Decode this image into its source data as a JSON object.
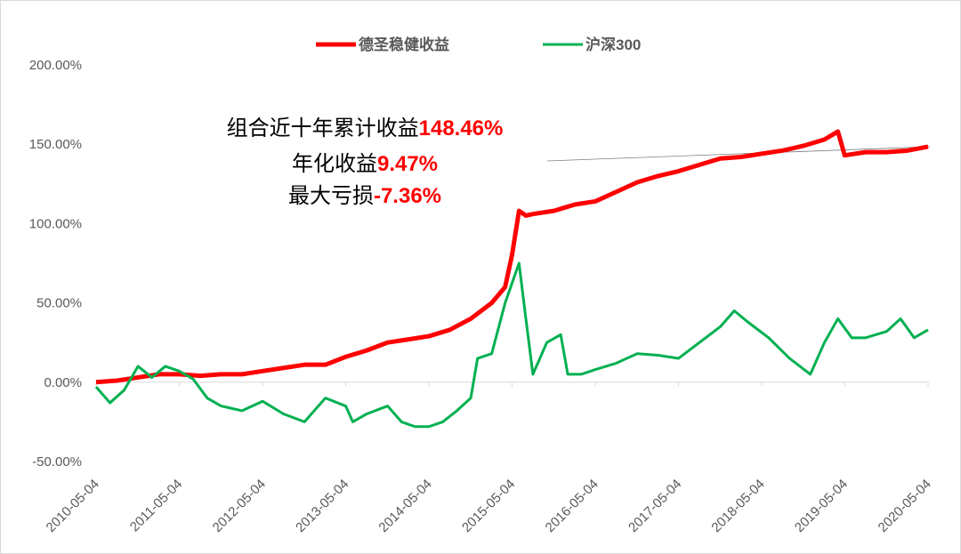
{
  "chart_data": {
    "type": "line",
    "xlim": [
      "2010-05-04",
      "2020-05-04"
    ],
    "xticks": [
      "2010-05-04",
      "2011-05-04",
      "2012-05-04",
      "2013-05-04",
      "2014-05-04",
      "2015-05-04",
      "2016-05-04",
      "2017-05-04",
      "2018-05-04",
      "2019-05-04",
      "2020-05-04"
    ],
    "ylim": [
      -50,
      200
    ],
    "yticks": [
      {
        "value": -50,
        "label": "-50.00%"
      },
      {
        "value": 0,
        "label": "0.00%"
      },
      {
        "value": 50,
        "label": "50.00%"
      },
      {
        "value": 100,
        "label": "100.00%"
      },
      {
        "value": 150,
        "label": "150.00%"
      },
      {
        "value": 200,
        "label": "200.00%"
      }
    ],
    "grid": false,
    "legend": "top",
    "annotations": [
      {
        "label": "组合近十年累计收益",
        "value": "148.46%"
      },
      {
        "label": "年化收益",
        "value": "9.47%"
      },
      {
        "label": "最大亏损",
        "value": "-7.36%"
      }
    ],
    "series": [
      {
        "name": "德圣稳健收益",
        "color": "#ff0000",
        "x": [
          "2010-05-04",
          "2010-08-04",
          "2010-11-04",
          "2011-02-04",
          "2011-05-04",
          "2011-08-04",
          "2011-11-04",
          "2012-02-04",
          "2012-05-04",
          "2012-08-04",
          "2012-11-04",
          "2013-02-04",
          "2013-05-04",
          "2013-08-04",
          "2013-11-04",
          "2014-02-04",
          "2014-05-04",
          "2014-08-04",
          "2014-11-04",
          "2015-02-04",
          "2015-04-04",
          "2015-05-04",
          "2015-06-04",
          "2015-07-04",
          "2015-08-04",
          "2015-11-04",
          "2016-02-04",
          "2016-05-04",
          "2016-08-04",
          "2016-11-04",
          "2017-02-04",
          "2017-05-04",
          "2017-08-04",
          "2017-11-04",
          "2018-02-04",
          "2018-05-04",
          "2018-08-04",
          "2018-11-04",
          "2019-02-04",
          "2019-04-04",
          "2019-05-04",
          "2019-08-04",
          "2019-11-04",
          "2020-02-04",
          "2020-05-04"
        ],
        "values": [
          0,
          1,
          3,
          5,
          5,
          4,
          5,
          5,
          7,
          9,
          11,
          11,
          16,
          20,
          25,
          27,
          29,
          33,
          40,
          50,
          60,
          80,
          108,
          105,
          106,
          108,
          112,
          114,
          120,
          126,
          130,
          133,
          137,
          141,
          142,
          144,
          146,
          149,
          153,
          158,
          143,
          145,
          145,
          146,
          148.46
        ]
      },
      {
        "name": "沪深300",
        "color": "#00b050",
        "x": [
          "2010-05-04",
          "2010-07-04",
          "2010-09-04",
          "2010-11-04",
          "2011-01-04",
          "2011-03-04",
          "2011-05-04",
          "2011-07-04",
          "2011-09-04",
          "2011-11-04",
          "2012-02-04",
          "2012-05-04",
          "2012-08-04",
          "2012-11-04",
          "2013-01-04",
          "2013-02-04",
          "2013-05-04",
          "2013-06-04",
          "2013-08-04",
          "2013-11-04",
          "2014-01-04",
          "2014-03-04",
          "2014-05-04",
          "2014-07-04",
          "2014-09-04",
          "2014-11-04",
          "2014-12-04",
          "2015-02-04",
          "2015-04-04",
          "2015-06-04",
          "2015-07-04",
          "2015-08-04",
          "2015-10-04",
          "2015-12-04",
          "2016-01-04",
          "2016-03-04",
          "2016-05-04",
          "2016-08-04",
          "2016-11-04",
          "2017-02-04",
          "2017-05-04",
          "2017-08-04",
          "2017-11-04",
          "2018-01-04",
          "2018-03-04",
          "2018-06-04",
          "2018-09-04",
          "2018-12-04",
          "2019-02-04",
          "2019-04-04",
          "2019-06-04",
          "2019-08-04",
          "2019-11-04",
          "2020-01-04",
          "2020-03-04",
          "2020-05-04"
        ],
        "values": [
          -3,
          -13,
          -5,
          10,
          3,
          10,
          7,
          2,
          -10,
          -15,
          -18,
          -12,
          -20,
          -25,
          -15,
          -10,
          -15,
          -25,
          -20,
          -15,
          -25,
          -28,
          -28,
          -25,
          -18,
          -10,
          15,
          18,
          50,
          75,
          40,
          5,
          25,
          30,
          5,
          5,
          8,
          12,
          18,
          17,
          15,
          25,
          35,
          45,
          38,
          28,
          15,
          5,
          25,
          40,
          28,
          28,
          32,
          40,
          28,
          33
        ]
      }
    ]
  }
}
